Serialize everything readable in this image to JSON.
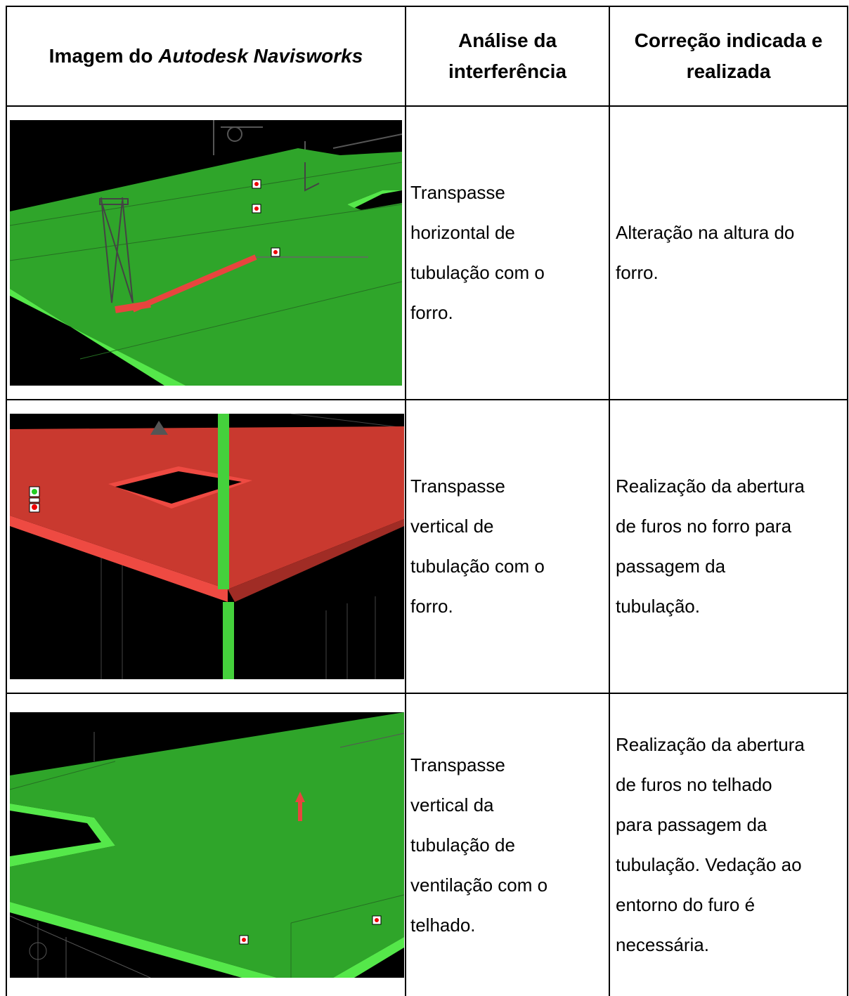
{
  "table": {
    "header": {
      "image": {
        "text": "Imagem do",
        "italic": "Autodesk Navisworks"
      },
      "analysis": [
        "Análise da",
        "interferência"
      ],
      "correction": [
        "Correção indicada e",
        "realizada"
      ]
    },
    "rows": [
      {
        "analysis": [
          "Transpasse",
          "horizontal de",
          "tubulação com o",
          "forro."
        ],
        "correction": [
          "Alteração na altura do",
          "forro."
        ]
      },
      {
        "analysis": [
          "Transpasse",
          "vertical de",
          "tubulação com o",
          "forro."
        ],
        "correction": [
          "Realização da abertura",
          "de furos no forro para",
          "passagem da",
          "tubulação."
        ]
      },
      {
        "analysis": [
          "Transpasse",
          "vertical da",
          "tubulação de",
          "ventilação com o",
          "telhado."
        ],
        "correction": [
          "Realização da abertura",
          "de furos no telhado",
          "para passagem da",
          "tubulação. Vedação ao",
          "entorno do furo é",
          "necessária."
        ]
      }
    ]
  }
}
